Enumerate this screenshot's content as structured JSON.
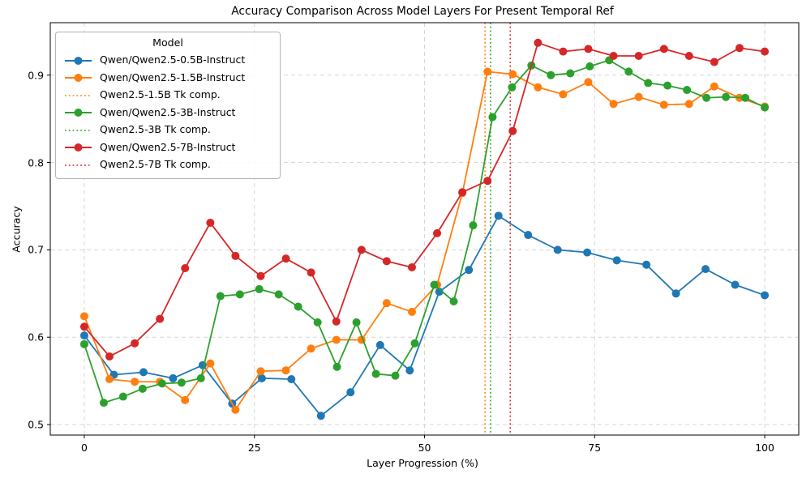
{
  "legend": {
    "title": "Model",
    "items": [
      {
        "label": "Qwen/Qwen2.5-0.5B-Instruct",
        "color": "#1f77b4",
        "style": "solid-marker"
      },
      {
        "label": "Qwen/Qwen2.5-1.5B-Instruct",
        "color": "#ff7f0e",
        "style": "solid-marker"
      },
      {
        "label": "Qwen2.5-1.5B Tk comp.",
        "color": "#ff7f0e",
        "style": "dotted"
      },
      {
        "label": "Qwen/Qwen2.5-3B-Instruct",
        "color": "#2ca02c",
        "style": "solid-marker"
      },
      {
        "label": "Qwen2.5-3B Tk comp.",
        "color": "#2ca02c",
        "style": "dotted"
      },
      {
        "label": "Qwen/Qwen2.5-7B-Instruct",
        "color": "#d62728",
        "style": "solid-marker"
      },
      {
        "label": "Qwen2.5-7B Tk comp.",
        "color": "#d62728",
        "style": "dotted"
      }
    ]
  },
  "chart_data": {
    "type": "line",
    "title": "Accuracy Comparison Across Model Layers For Present Temporal Ref",
    "xlabel": "Layer Progression (%)",
    "ylabel": "Accuracy",
    "xlim": [
      -5,
      105
    ],
    "ylim": [
      0.488,
      0.96
    ],
    "xticks": [
      0,
      25,
      50,
      75,
      100
    ],
    "yticks": [
      0.5,
      0.6,
      0.7,
      0.8,
      0.9
    ],
    "grid": true,
    "legend_position": "upper-left",
    "series": [
      {
        "name": "Qwen/Qwen2.5-0.5B-Instruct",
        "color": "#1f77b4",
        "marker": "circle",
        "x": [
          0,
          4.35,
          8.7,
          13.04,
          17.39,
          21.74,
          26.09,
          30.43,
          34.78,
          39.13,
          43.48,
          47.83,
          52.17,
          56.52,
          60.87,
          65.22,
          69.57,
          73.91,
          78.26,
          82.61,
          86.96,
          91.3,
          95.65,
          100
        ],
        "y": [
          0.602,
          0.557,
          0.56,
          0.553,
          0.568,
          0.524,
          0.553,
          0.552,
          0.51,
          0.537,
          0.591,
          0.562,
          0.652,
          0.677,
          0.739,
          0.717,
          0.7,
          0.697,
          0.688,
          0.683,
          0.65,
          0.678,
          0.66,
          0.648
        ]
      },
      {
        "name": "Qwen/Qwen2.5-1.5B-Instruct",
        "color": "#ff7f0e",
        "marker": "circle",
        "x": [
          0,
          3.7,
          7.41,
          11.11,
          14.81,
          18.52,
          22.22,
          25.93,
          29.63,
          33.33,
          37.04,
          40.74,
          44.44,
          48.15,
          51.85,
          55.56,
          59.26,
          62.96,
          66.67,
          70.37,
          74.07,
          77.78,
          81.48,
          85.19,
          88.89,
          92.59,
          96.3,
          100
        ],
        "y": [
          0.624,
          0.552,
          0.549,
          0.549,
          0.528,
          0.57,
          0.517,
          0.561,
          0.562,
          0.587,
          0.597,
          0.597,
          0.639,
          0.629,
          0.66,
          0.765,
          0.904,
          0.901,
          0.886,
          0.878,
          0.892,
          0.867,
          0.875,
          0.866,
          0.867,
          0.887,
          0.874,
          0.864
        ]
      },
      {
        "name": "Qwen/Qwen2.5-3B-Instruct",
        "color": "#2ca02c",
        "marker": "circle",
        "x": [
          0,
          2.86,
          5.71,
          8.57,
          11.43,
          14.29,
          17.14,
          20.0,
          22.86,
          25.71,
          28.57,
          31.43,
          34.29,
          37.14,
          40.0,
          42.86,
          45.71,
          48.57,
          51.43,
          54.29,
          57.14,
          60.0,
          62.86,
          65.71,
          68.57,
          71.43,
          74.29,
          77.14,
          80.0,
          82.86,
          85.71,
          88.57,
          91.43,
          94.29,
          97.14,
          100
        ],
        "y": [
          0.592,
          0.525,
          0.532,
          0.541,
          0.547,
          0.548,
          0.553,
          0.647,
          0.649,
          0.655,
          0.649,
          0.635,
          0.617,
          0.566,
          0.617,
          0.558,
          0.556,
          0.593,
          0.66,
          0.641,
          0.728,
          0.852,
          0.886,
          0.911,
          0.9,
          0.902,
          0.91,
          0.917,
          0.904,
          0.891,
          0.888,
          0.883,
          0.874,
          0.875,
          0.874,
          0.863
        ]
      },
      {
        "name": "Qwen/Qwen2.5-7B-Instruct",
        "color": "#d62728",
        "marker": "circle",
        "x": [
          0,
          3.7,
          7.41,
          11.11,
          14.81,
          18.52,
          22.22,
          25.93,
          29.63,
          33.33,
          37.04,
          40.74,
          44.44,
          48.15,
          51.85,
          55.56,
          59.26,
          62.96,
          66.67,
          70.37,
          74.07,
          77.78,
          81.48,
          85.19,
          88.89,
          92.59,
          96.3,
          100
        ],
        "y": [
          0.612,
          0.578,
          0.593,
          0.621,
          0.679,
          0.731,
          0.693,
          0.67,
          0.69,
          0.674,
          0.618,
          0.7,
          0.687,
          0.68,
          0.719,
          0.766,
          0.779,
          0.836,
          0.937,
          0.927,
          0.93,
          0.922,
          0.922,
          0.93,
          0.922,
          0.915,
          0.931,
          0.927
        ]
      }
    ],
    "vlines": [
      {
        "name": "Qwen2.5-1.5B Tk comp.",
        "color": "#ff7f0e",
        "x": 58.9
      },
      {
        "name": "Qwen2.5-3B Tk comp.",
        "color": "#2ca02c",
        "x": 59.7
      },
      {
        "name": "Qwen2.5-7B Tk comp.",
        "color": "#d62728",
        "x": 62.6
      }
    ]
  }
}
